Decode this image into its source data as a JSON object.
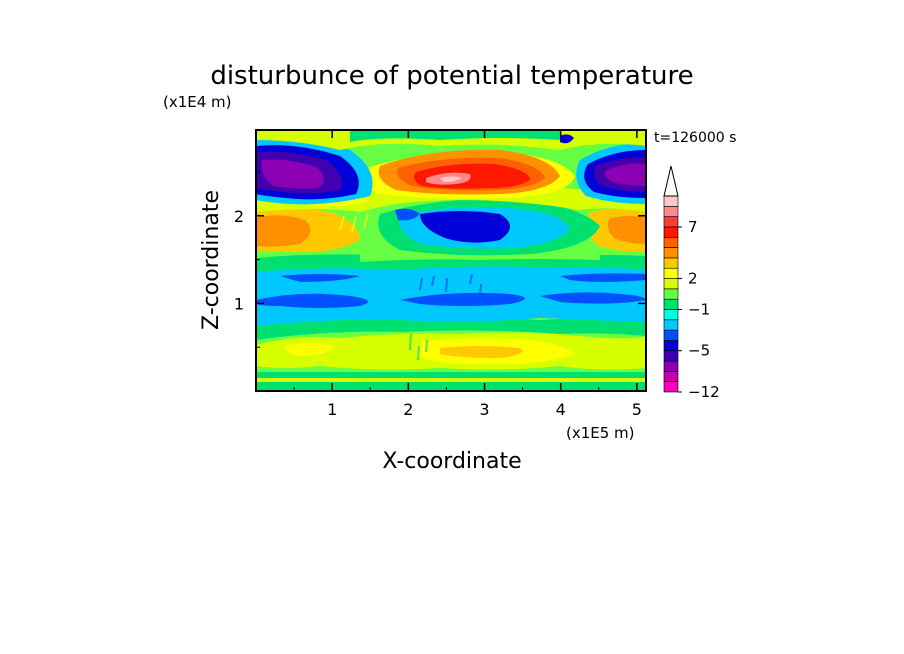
{
  "chart_data": {
    "type": "heatmap",
    "title": "disturbunce of potential temperature",
    "time_label": "t=126000 s",
    "xlabel": "X-coordinate",
    "ylabel": "Z-coordinate",
    "x_scale_label": "(x1E5 m)",
    "y_scale_label": "(x1E4 m)",
    "xlim": [
      0,
      5.12
    ],
    "ylim": [
      0,
      2.98
    ],
    "x_ticks": [
      "1",
      "2",
      "3",
      "4",
      "5"
    ],
    "y_ticks": [
      "1",
      "2"
    ],
    "colorbar": {
      "tick_labels": [
        "7",
        "2",
        "−1",
        "−5",
        "−12"
      ],
      "levels": [
        -12,
        -10,
        -8,
        -6,
        -5,
        -4,
        -3,
        -2,
        -1,
        0,
        1,
        2,
        3,
        4,
        5,
        6,
        7,
        8,
        9
      ],
      "colors": [
        "#ff00c0",
        "#c800a8",
        "#8c00b4",
        "#4000b0",
        "#0000d8",
        "#0050ff",
        "#00c8ff",
        "#00ffe0",
        "#00e070",
        "#66ff44",
        "#d8ff00",
        "#ffff00",
        "#ffc800",
        "#ff9000",
        "#ff6000",
        "#ff1800",
        "#ff3838",
        "#ff8a8a",
        "#ffc8c8"
      ],
      "extend": "max"
    },
    "description_fields": [
      {
        "name": "purple-core-left",
        "x": 0.7,
        "z": 2.45,
        "value": -10
      },
      {
        "name": "purple-core-right",
        "x": 4.8,
        "z": 2.45,
        "value": -9
      },
      {
        "name": "red-core-center",
        "x": 2.6,
        "z": 2.4,
        "value": 8
      },
      {
        "name": "blue-band-upper",
        "x": 2.7,
        "z": 1.85,
        "value": -5
      },
      {
        "name": "blue-band-middle",
        "x": 2.5,
        "z": 1.0,
        "value": -4
      },
      {
        "name": "yellow-band-lower",
        "x": 2.6,
        "z": 0.5,
        "value": 2
      }
    ]
  }
}
